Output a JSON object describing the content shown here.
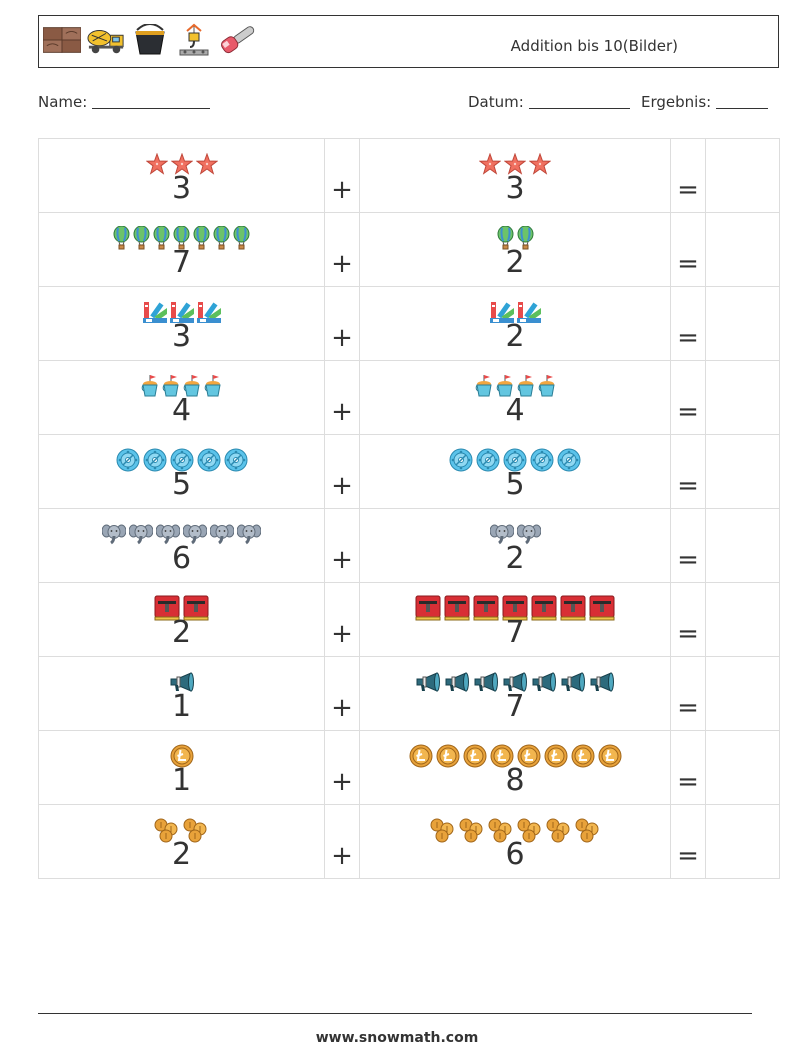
{
  "header": {
    "title": "Addition bis 10(Bilder)",
    "icons": [
      "wood-planks-icon",
      "concrete-mixer-truck-icon",
      "bucket-icon",
      "crane-hook-icon",
      "chainsaw-icon"
    ]
  },
  "info": {
    "name_label": "Name:",
    "date_label": "Datum:",
    "result_label": "Ergebnis:"
  },
  "operators": {
    "plus": "+",
    "equals": "="
  },
  "rows": [
    {
      "a": 3,
      "b": 3,
      "icon": "starfish",
      "icon_b": "starfish"
    },
    {
      "a": 7,
      "b": 2,
      "icon": "hot-air-balloon",
      "icon_b": "hot-air-balloon"
    },
    {
      "a": 3,
      "b": 2,
      "icon": "paint-swatches",
      "icon_b": "paint-swatches"
    },
    {
      "a": 4,
      "b": 4,
      "icon": "sand-bucket",
      "icon_b": "sand-bucket"
    },
    {
      "a": 5,
      "b": 5,
      "icon": "film-reel",
      "icon_b": "film-reel"
    },
    {
      "a": 6,
      "b": 2,
      "icon": "elephant",
      "icon_b": "elephant"
    },
    {
      "a": 2,
      "b": 7,
      "icon": "postbox",
      "icon_b": "postbox"
    },
    {
      "a": 1,
      "b": 7,
      "icon": "megaphone",
      "icon_b": "megaphone"
    },
    {
      "a": 1,
      "b": 8,
      "icon": "litecoin",
      "icon_b": "litecoin"
    },
    {
      "a": 2,
      "b": 6,
      "icon": "coin-stack",
      "icon_b": "coin-stack"
    }
  ],
  "footer": {
    "url": "www.snowmath.com"
  }
}
